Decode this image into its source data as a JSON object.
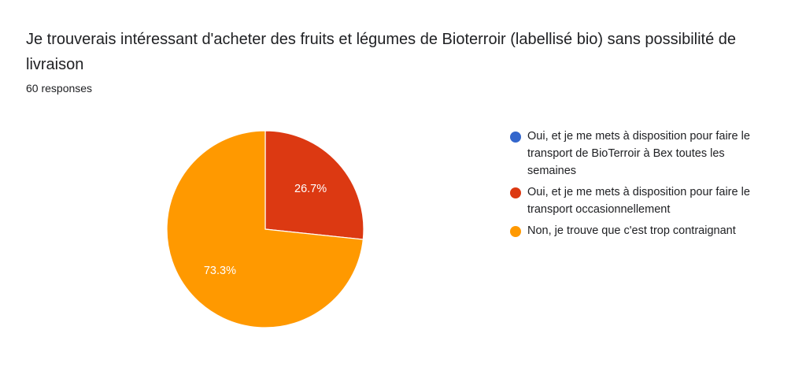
{
  "question": {
    "title": "Je trouverais intéressant d'acheter des fruits et légumes de Bioterroir (labellisé bio) sans possibilité de livraison",
    "response_count": "60 responses"
  },
  "chart_data": {
    "type": "pie",
    "title": "Je trouverais intéressant d'acheter des fruits et légumes de Bioterroir (labellisé bio) sans possibilité de livraison",
    "total_responses": 60,
    "slices": [
      {
        "label": "Oui, et je me mets à disposition pour faire le transport de BioTerroir à Bex toutes les semaines",
        "value": 0,
        "percent": 0,
        "percent_label": "",
        "color": "#3366cc"
      },
      {
        "label": "Oui, et je me mets à disposition pour faire le transport occasionnellement",
        "value": 16,
        "percent": 26.7,
        "percent_label": "26.7%",
        "color": "#dc3912"
      },
      {
        "label": "Non, je trouve que c'est trop contraignant",
        "value": 44,
        "percent": 73.3,
        "percent_label": "73.3%",
        "color": "#ff9900"
      }
    ],
    "legend_position": "right"
  }
}
